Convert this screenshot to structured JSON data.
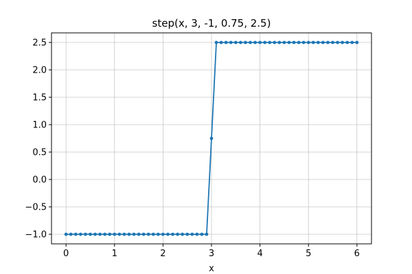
{
  "chart_data": {
    "type": "line",
    "title": "step(x, 3, -1, 0.75, 2.5)",
    "xlabel": "x",
    "ylabel": "",
    "xlim": [
      -0.3,
      6.3
    ],
    "ylim": [
      -1.175,
      2.675
    ],
    "xticks": [
      0,
      1,
      2,
      3,
      4,
      5,
      6
    ],
    "xtick_labels": [
      "0",
      "1",
      "2",
      "3",
      "4",
      "5",
      "6"
    ],
    "yticks": [
      -1.0,
      -0.5,
      0.0,
      0.5,
      1.0,
      1.5,
      2.0,
      2.5
    ],
    "ytick_labels": [
      "−1.0",
      "−0.5",
      "0.0",
      "0.5",
      "1.0",
      "1.5",
      "2.0",
      "2.5"
    ],
    "grid": true,
    "series": [
      {
        "color": "#1f77b4",
        "marker": "circle",
        "x": [
          0.0,
          0.1,
          0.2,
          0.3,
          0.4,
          0.5,
          0.6,
          0.7,
          0.8,
          0.9,
          1.0,
          1.1,
          1.2,
          1.3,
          1.4,
          1.5,
          1.6,
          1.7,
          1.8,
          1.9,
          2.0,
          2.1,
          2.2,
          2.3,
          2.4,
          2.5,
          2.6,
          2.7,
          2.8,
          2.9,
          3.0,
          3.1,
          3.2,
          3.3,
          3.4,
          3.5,
          3.6,
          3.7,
          3.8,
          3.9,
          4.0,
          4.1,
          4.2,
          4.3,
          4.4,
          4.5,
          4.6,
          4.7,
          4.8,
          4.9,
          5.0,
          5.1,
          5.2,
          5.3,
          5.4,
          5.5,
          5.6,
          5.7,
          5.8,
          5.9,
          6.0
        ],
        "y": [
          -1,
          -1,
          -1,
          -1,
          -1,
          -1,
          -1,
          -1,
          -1,
          -1,
          -1,
          -1,
          -1,
          -1,
          -1,
          -1,
          -1,
          -1,
          -1,
          -1,
          -1,
          -1,
          -1,
          -1,
          -1,
          -1,
          -1,
          -1,
          -1,
          -1,
          0.75,
          2.5,
          2.5,
          2.5,
          2.5,
          2.5,
          2.5,
          2.5,
          2.5,
          2.5,
          2.5,
          2.5,
          2.5,
          2.5,
          2.5,
          2.5,
          2.5,
          2.5,
          2.5,
          2.5,
          2.5,
          2.5,
          2.5,
          2.5,
          2.5,
          2.5,
          2.5,
          2.5,
          2.5,
          2.5,
          2.5
        ]
      }
    ]
  }
}
